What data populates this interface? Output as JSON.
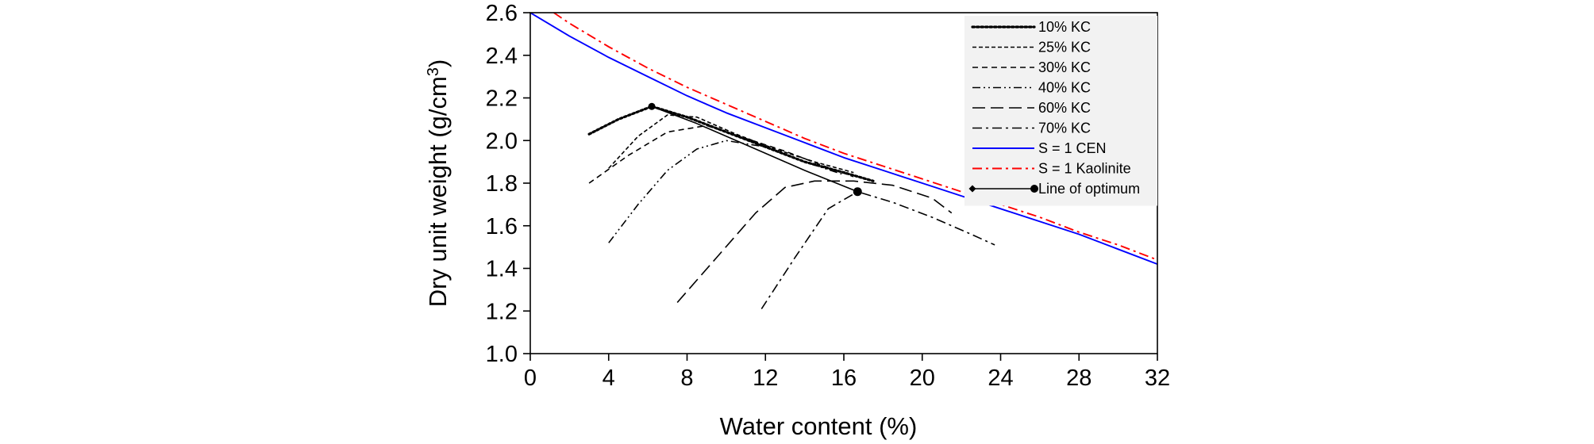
{
  "chart_data": {
    "type": "line",
    "xlabel": "Water content (%)",
    "ylabel_main": "Dry unit weight (g/cm",
    "ylabel_sup": "3",
    "ylabel_tail": ")",
    "xlim": [
      0,
      32
    ],
    "ylim": [
      1.0,
      2.6
    ],
    "xticks": [
      0,
      4,
      8,
      12,
      16,
      20,
      24,
      28,
      32
    ],
    "yticks": [
      1.0,
      1.2,
      1.4,
      1.6,
      1.8,
      2.0,
      2.2,
      2.4,
      2.6
    ],
    "ytick_labels": [
      "1.0",
      "1.2",
      "1.4",
      "1.6",
      "1.8",
      "2.0",
      "2.2",
      "2.4",
      "2.6"
    ],
    "grid": false,
    "legend_position": "top-right",
    "series": [
      {
        "name": "10% KC",
        "color": "#000000",
        "style": "dotted",
        "x": [
          3.0,
          4.5,
          6.2,
          8.0,
          10.0,
          12.0,
          14.0,
          16.0,
          17.5
        ],
        "y": [
          2.03,
          2.1,
          2.16,
          2.11,
          2.04,
          1.97,
          1.9,
          1.85,
          1.81
        ]
      },
      {
        "name": "25% KC",
        "color": "#000000",
        "style": "dash-short",
        "x": [
          4.0,
          5.5,
          7.0,
          8.5,
          10.5,
          12.5,
          14.5,
          16.5
        ],
        "y": [
          1.87,
          2.02,
          2.12,
          2.11,
          2.03,
          1.96,
          1.9,
          1.85
        ]
      },
      {
        "name": "30% KC",
        "color": "#000000",
        "style": "dash-medium",
        "x": [
          3.0,
          5.0,
          7.0,
          9.0,
          11.0,
          13.0,
          15.0,
          16.5
        ],
        "y": [
          1.8,
          1.93,
          2.04,
          2.07,
          2.01,
          1.95,
          1.88,
          1.83
        ]
      },
      {
        "name": "40% KC",
        "color": "#000000",
        "style": "dash-dot-dot",
        "x": [
          4.0,
          5.5,
          7.0,
          8.5,
          10.0,
          12.0,
          14.0,
          16.0
        ],
        "y": [
          1.52,
          1.7,
          1.86,
          1.96,
          2.0,
          1.97,
          1.9,
          1.84
        ]
      },
      {
        "name": "60% KC",
        "color": "#000000",
        "style": "dash-long",
        "x": [
          7.5,
          9.5,
          11.5,
          13.0,
          14.5,
          16.5,
          18.5,
          20.5,
          21.5
        ],
        "y": [
          1.24,
          1.45,
          1.66,
          1.78,
          1.81,
          1.81,
          1.79,
          1.73,
          1.66
        ]
      },
      {
        "name": "70% KC",
        "color": "#000000",
        "style": "dash-dot",
        "x": [
          11.8,
          13.5,
          15.2,
          16.7,
          18.5,
          20.5,
          22.5,
          23.7
        ],
        "y": [
          1.21,
          1.45,
          1.68,
          1.76,
          1.71,
          1.64,
          1.56,
          1.51
        ]
      },
      {
        "name": "S = 1 CEN",
        "color": "#0000FF",
        "style": "solid",
        "x": [
          0,
          2,
          4,
          6,
          8,
          10,
          12,
          14,
          16,
          18,
          20,
          22,
          24,
          26,
          28,
          30,
          32
        ],
        "y": [
          2.6,
          2.49,
          2.39,
          2.3,
          2.21,
          2.13,
          2.06,
          1.99,
          1.92,
          1.86,
          1.8,
          1.74,
          1.68,
          1.62,
          1.56,
          1.49,
          1.42
        ]
      },
      {
        "name": "S = 1 Kaolinite",
        "color": "#FF0000",
        "style": "dash-dot",
        "x": [
          1.2,
          2,
          4,
          6,
          8,
          10,
          12,
          14,
          16,
          18,
          20,
          22,
          24,
          26,
          28,
          30,
          32
        ],
        "y": [
          2.6,
          2.55,
          2.44,
          2.34,
          2.25,
          2.17,
          2.09,
          2.01,
          1.94,
          1.88,
          1.82,
          1.76,
          1.7,
          1.64,
          1.57,
          1.51,
          1.44
        ]
      },
      {
        "name": "Line of optimum",
        "color": "#000000",
        "style": "solid-markers",
        "x": [
          6.2,
          8.5,
          10.0,
          12.0,
          14.0,
          16.7
        ],
        "y": [
          2.16,
          2.08,
          2.02,
          1.94,
          1.86,
          1.76
        ]
      }
    ]
  }
}
